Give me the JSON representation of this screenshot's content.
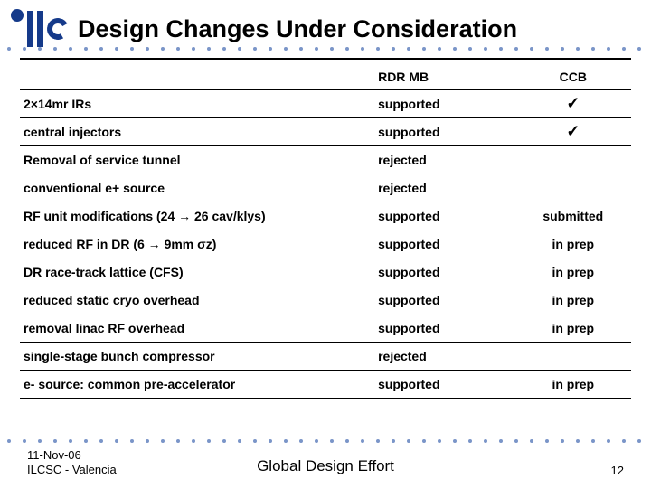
{
  "title": "Design Changes Under Consideration",
  "columns": {
    "item": "",
    "rdr": "RDR MB",
    "ccb": "CCB"
  },
  "rows": [
    {
      "item": "2×14mr IRs",
      "rdr": "supported",
      "ccb": "✓"
    },
    {
      "item": "central injectors",
      "rdr": "supported",
      "ccb": "✓"
    },
    {
      "item": "Removal of service tunnel",
      "rdr": "rejected",
      "ccb": ""
    },
    {
      "item": "conventional e+ source",
      "rdr": "rejected",
      "ccb": ""
    },
    {
      "item": "RF unit modifications (24 → 26 cav/klys)",
      "rdr": "supported",
      "ccb": "submitted"
    },
    {
      "item": "reduced RF in DR (6 → 9mm σz)",
      "rdr": "supported",
      "ccb": "in prep"
    },
    {
      "item": "DR race-track lattice (CFS)",
      "rdr": "supported",
      "ccb": "in prep"
    },
    {
      "item": "reduced static cryo overhead",
      "rdr": "supported",
      "ccb": "in prep"
    },
    {
      "item": "removal linac RF overhead",
      "rdr": "supported",
      "ccb": "in prep"
    },
    {
      "item": "single-stage bunch compressor",
      "rdr": "rejected",
      "ccb": ""
    },
    {
      "item": "e- source: common pre-accelerator",
      "rdr": "supported",
      "ccb": "in prep"
    }
  ],
  "footer": {
    "date": "11-Nov-06",
    "venue": "ILCSC - Valencia",
    "center": "Global Design Effort",
    "page": "12"
  }
}
